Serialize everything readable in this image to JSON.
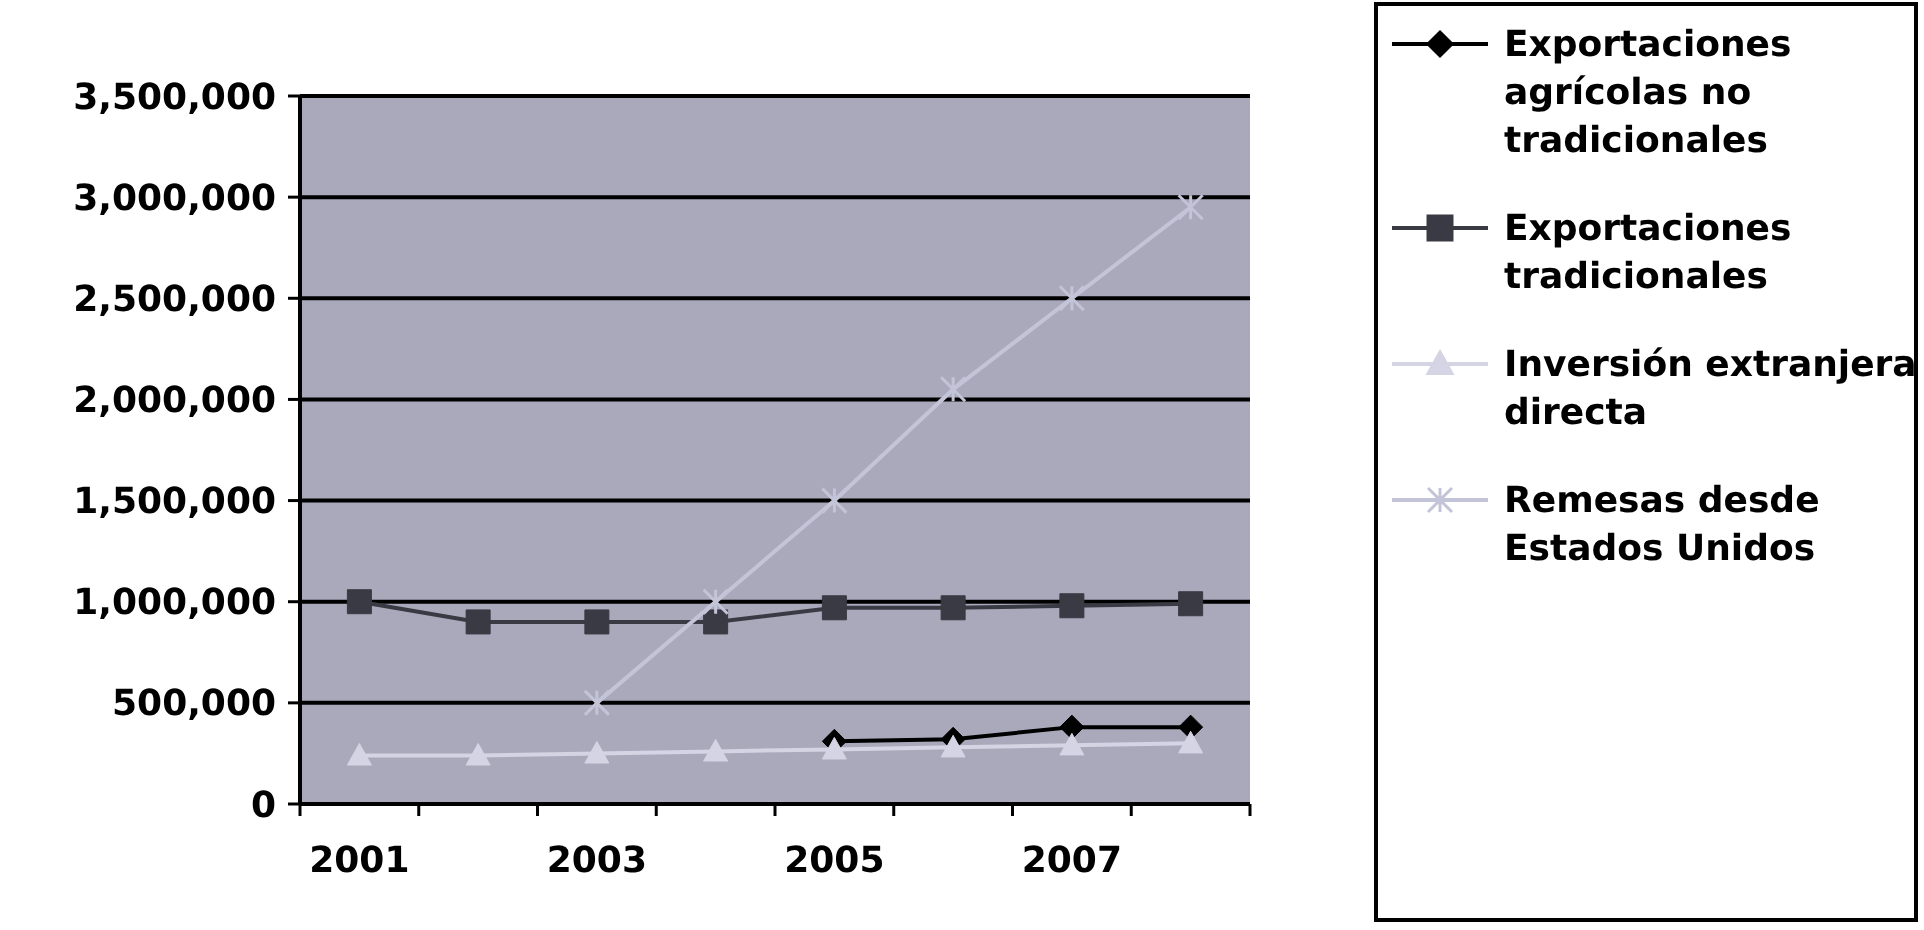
{
  "chart_data": {
    "type": "line",
    "categories": [
      "2001",
      null,
      "2003",
      null,
      "2005",
      null,
      "2007",
      null
    ],
    "series": [
      {
        "name": "Exportaciones agrícolas no tradicionales",
        "color": "#000000",
        "marker": "diamond",
        "values": [
          null,
          null,
          null,
          null,
          310000,
          320000,
          380000,
          380000
        ]
      },
      {
        "name": "Exportaciones tradicionales",
        "color": "#3a3a44",
        "marker": "square",
        "values": [
          1000000,
          900000,
          900000,
          900000,
          970000,
          970000,
          980000,
          990000
        ]
      },
      {
        "name": "Inversión extranjera directa",
        "color": "#d4d4e4",
        "marker": "triangle",
        "values": [
          240000,
          240000,
          250000,
          260000,
          270000,
          280000,
          290000,
          300000
        ]
      },
      {
        "name": "Remesas desde Estados Unidos",
        "color": "#c4c4d8",
        "marker": "cross",
        "values": [
          null,
          null,
          500000,
          1000000,
          1500000,
          2050000,
          2500000,
          2950000
        ]
      }
    ],
    "ylim": [
      0,
      3500000
    ],
    "yticks": [
      {
        "value": 0,
        "label": "0"
      },
      {
        "value": 500000,
        "label": "500,000"
      },
      {
        "value": 1000000,
        "label": "1,000,000"
      },
      {
        "value": 1500000,
        "label": "1,500,000"
      },
      {
        "value": 2000000,
        "label": "2,000,000"
      },
      {
        "value": 2500000,
        "label": "2,500,000"
      },
      {
        "value": 3000000,
        "label": "3,000,000"
      },
      {
        "value": 3500000,
        "label": "3,500,000"
      }
    ],
    "grid": "y",
    "legend": "right"
  }
}
